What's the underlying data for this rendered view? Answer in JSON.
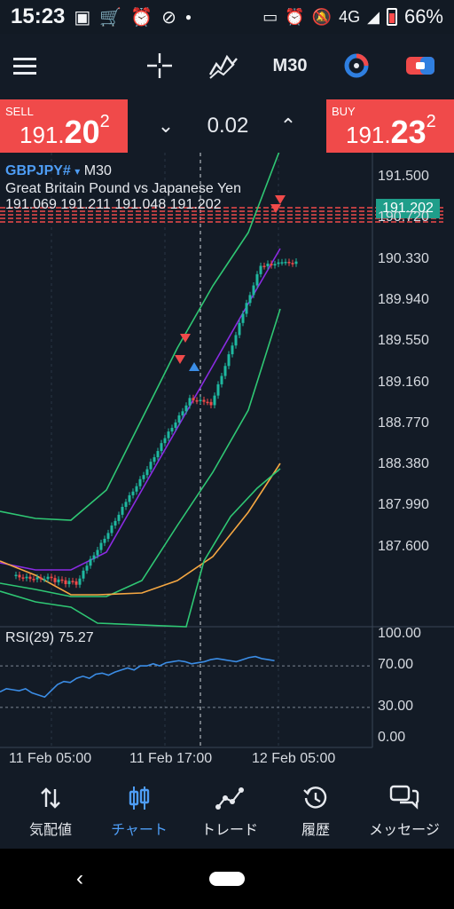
{
  "status_bar": {
    "time": "15:23",
    "left_icons": [
      "box-icon",
      "cart-icon",
      "alarm-icon",
      "no-location-icon",
      "dot-icon"
    ],
    "right_icons": [
      "cast-icon",
      "alarm-icon",
      "mute-icon",
      "signal-icon",
      "battery-icon"
    ],
    "network": "4G",
    "battery": "66%"
  },
  "toolbar": {
    "timeframe": "M30"
  },
  "quote": {
    "sell_label": "SELL",
    "sell_price_main": "191.",
    "sell_price_big": "20",
    "sell_price_sup": "2",
    "buy_label": "BUY",
    "buy_price_main": "191.",
    "buy_price_big": "23",
    "buy_price_sup": "2",
    "lot": "0.02"
  },
  "chart": {
    "symbol": "GBPJPY#",
    "symbol_arrow": "▾",
    "timeframe": "M30",
    "description": "Great Britain Pound vs Japanese Yen",
    "ohlc": "191.069 191.211 191.048 191.202",
    "current_price": "191.202",
    "price_axis": [
      "191.500",
      "190.720",
      "190.330",
      "189.940",
      "189.550",
      "189.160",
      "188.770",
      "188.380",
      "187.990",
      "187.600"
    ],
    "rsi_label": "RSI(29) 75.27",
    "rsi_axis": [
      "100.00",
      "70.00",
      "30.00",
      "0.00"
    ],
    "time_axis": [
      "11 Feb 05:00",
      "11 Feb 17:00",
      "12 Feb 05:00"
    ],
    "colors": {
      "up": "#1fb8a0",
      "down": "#f04a4a",
      "bb": "#2fc774",
      "ma_fast": "#8a2be2",
      "ma_slow": "#f5a742",
      "rsi": "#3b8de6"
    }
  },
  "bottom_nav": {
    "items": [
      {
        "label": "気配値",
        "icon": "quotes-arrows-icon"
      },
      {
        "label": "チャート",
        "icon": "candles-icon"
      },
      {
        "label": "トレード",
        "icon": "trade-line-icon"
      },
      {
        "label": "履歴",
        "icon": "history-icon"
      },
      {
        "label": "メッセージ",
        "icon": "messages-icon"
      }
    ]
  }
}
